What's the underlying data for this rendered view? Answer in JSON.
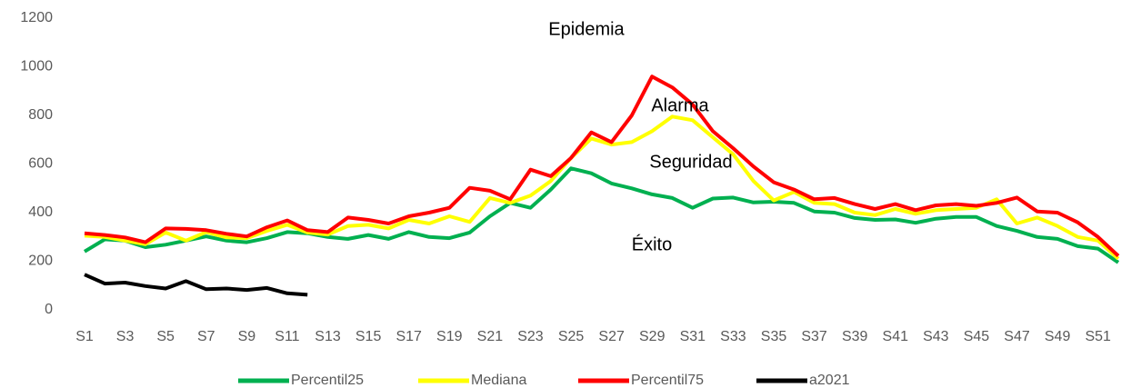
{
  "chart_data": {
    "type": "line",
    "categories": [
      "S1",
      null,
      "S3",
      null,
      "S5",
      null,
      "S7",
      null,
      "S9",
      null,
      "S11",
      null,
      "S13",
      null,
      "S15",
      null,
      "S17",
      null,
      "S19",
      null,
      "S21",
      null,
      "S23",
      null,
      "S25",
      null,
      "S27",
      null,
      "S29",
      null,
      "S31",
      null,
      "S33",
      null,
      "S35",
      null,
      "S37",
      null,
      "S39",
      null,
      "S41",
      null,
      "S43",
      null,
      "S45",
      null,
      "S47",
      null,
      "S49",
      null,
      "S51",
      null
    ],
    "series": [
      {
        "name": "Percentil25",
        "color": "#00b050",
        "values": [
          240,
          290,
          285,
          258,
          268,
          285,
          302,
          285,
          278,
          295,
          320,
          315,
          300,
          292,
          308,
          292,
          320,
          300,
          295,
          318,
          385,
          440,
          420,
          495,
          582,
          562,
          520,
          500,
          475,
          460,
          420,
          458,
          462,
          442,
          445,
          440,
          405,
          400,
          378,
          370,
          372,
          358,
          375,
          382,
          382,
          345,
          325,
          300,
          292,
          262,
          252,
          195
        ]
      },
      {
        "name": "Mediana",
        "color": "#ffff00",
        "values": [
          305,
          300,
          285,
          270,
          318,
          285,
          320,
          298,
          295,
          325,
          350,
          318,
          310,
          345,
          350,
          335,
          370,
          355,
          385,
          362,
          460,
          440,
          470,
          530,
          625,
          705,
          680,
          690,
          735,
          795,
          780,
          710,
          640,
          530,
          450,
          485,
          440,
          435,
          400,
          390,
          415,
          395,
          410,
          415,
          420,
          455,
          355,
          380,
          345,
          300,
          285,
          210
        ]
      },
      {
        "name": "Percentil75",
        "color": "#ff0000",
        "values": [
          315,
          308,
          298,
          278,
          335,
          333,
          328,
          313,
          302,
          340,
          368,
          328,
          320,
          380,
          370,
          355,
          385,
          400,
          420,
          502,
          490,
          455,
          577,
          550,
          625,
          730,
          690,
          800,
          960,
          915,
          845,
          735,
          665,
          590,
          525,
          495,
          455,
          460,
          435,
          415,
          435,
          410,
          430,
          435,
          428,
          440,
          462,
          405,
          400,
          360,
          300,
          222
        ]
      },
      {
        "name": "a2021",
        "color": "#000000",
        "values": [
          145,
          108,
          112,
          98,
          88,
          118,
          85,
          88,
          82,
          90,
          68,
          62,
          null,
          null,
          null,
          null,
          null,
          null,
          null,
          null,
          null,
          null,
          null,
          null,
          null,
          null,
          null,
          null,
          null,
          null,
          null,
          null,
          null,
          null,
          null,
          null,
          null,
          null,
          null,
          null,
          null,
          null,
          null,
          null,
          null,
          null,
          null,
          null,
          null,
          null,
          null,
          null
        ]
      }
    ],
    "annotations": [
      "Epidemia",
      "Alarma",
      "Seguridad",
      "Éxito"
    ],
    "ylim": [
      0,
      1200
    ],
    "yticks": [
      0,
      200,
      400,
      600,
      800,
      1000,
      1200
    ],
    "grid": false,
    "legend": "bottom"
  }
}
